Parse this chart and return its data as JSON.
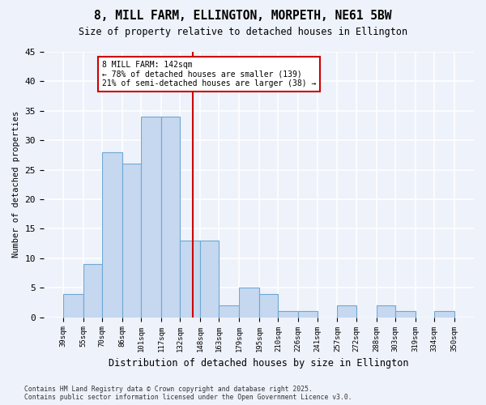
{
  "title": "8, MILL FARM, ELLINGTON, MORPETH, NE61 5BW",
  "subtitle": "Size of property relative to detached houses in Ellington",
  "xlabel": "Distribution of detached houses by size in Ellington",
  "ylabel": "Number of detached properties",
  "bin_edges": [
    39,
    55,
    70,
    86,
    101,
    117,
    132,
    148,
    163,
    179,
    195,
    210,
    226,
    241,
    257,
    272,
    288,
    303,
    319,
    334,
    350
  ],
  "bar_heights": [
    4,
    9,
    28,
    26,
    34,
    34,
    13,
    13,
    2,
    5,
    4,
    1,
    1,
    0,
    2,
    0,
    2,
    1,
    0,
    1
  ],
  "bar_color": "#c5d8f0",
  "bar_edge_color": "#6fa8d4",
  "vline_x": 142,
  "vline_color": "#cc0000",
  "annotation_text": "8 MILL FARM: 142sqm\n← 78% of detached houses are smaller (139)\n21% of semi-detached houses are larger (38) →",
  "annotation_box_color": "#ffffff",
  "annotation_box_edge": "#cc0000",
  "footer": "Contains HM Land Registry data © Crown copyright and database right 2025.\nContains public sector information licensed under the Open Government Licence v3.0.",
  "ylim": [
    0,
    45
  ],
  "yticks": [
    0,
    5,
    10,
    15,
    20,
    25,
    30,
    35,
    40,
    45
  ],
  "background_color": "#eef2fb",
  "grid_color": "#ffffff"
}
